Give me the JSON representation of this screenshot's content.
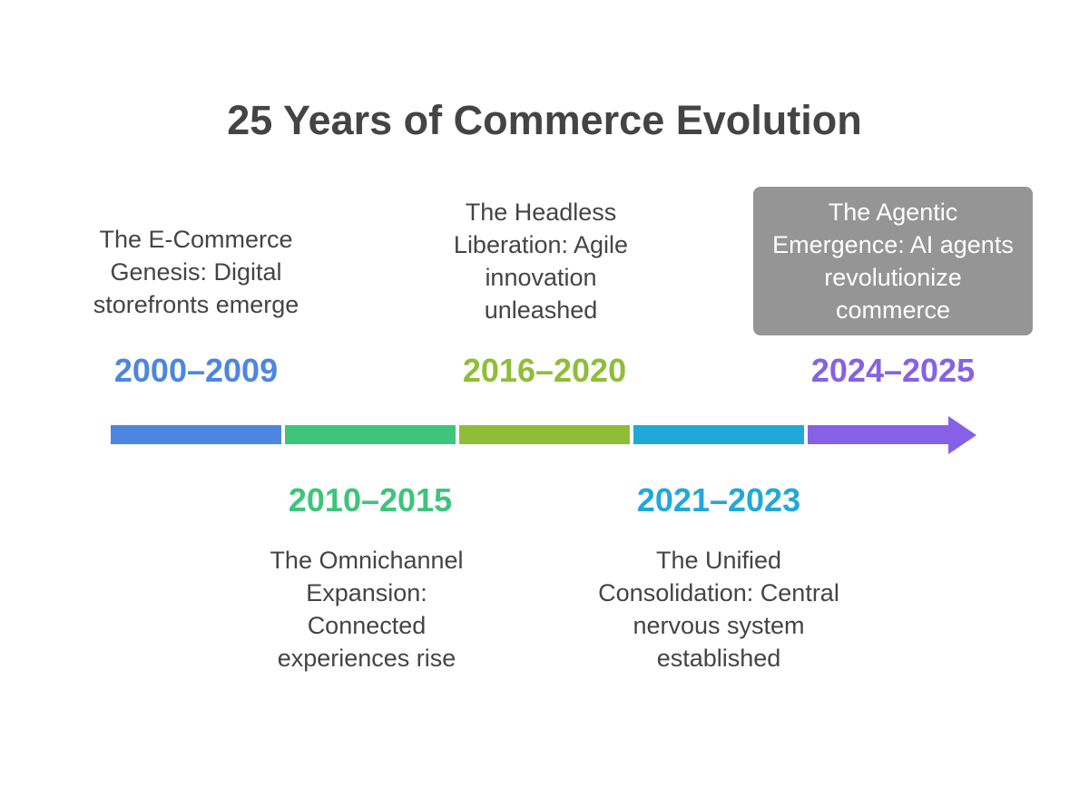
{
  "title": "25 Years of Commerce Evolution",
  "colors": {
    "blue": "#4d86e0",
    "green": "#3ec47b",
    "olive": "#8fbd38",
    "cyan": "#20a9d8",
    "purple": "#8661e5",
    "highlight_bg": "#959595"
  },
  "eras": [
    {
      "years": "2000–2009",
      "desc": "The E-Commerce Genesis: Digital storefronts emerge"
    },
    {
      "years": "2010–2015",
      "desc": "The Omnichannel Expansion: Connected experiences rise"
    },
    {
      "years": "2016–2020",
      "desc": "The Headless Liberation: Agile innovation unleashed"
    },
    {
      "years": "2021–2023",
      "desc": "The Unified Consolidation: Central nervous system established"
    },
    {
      "years": "2024–2025",
      "desc": "The Agentic Emergence: AI agents revolutionize commerce"
    }
  ]
}
